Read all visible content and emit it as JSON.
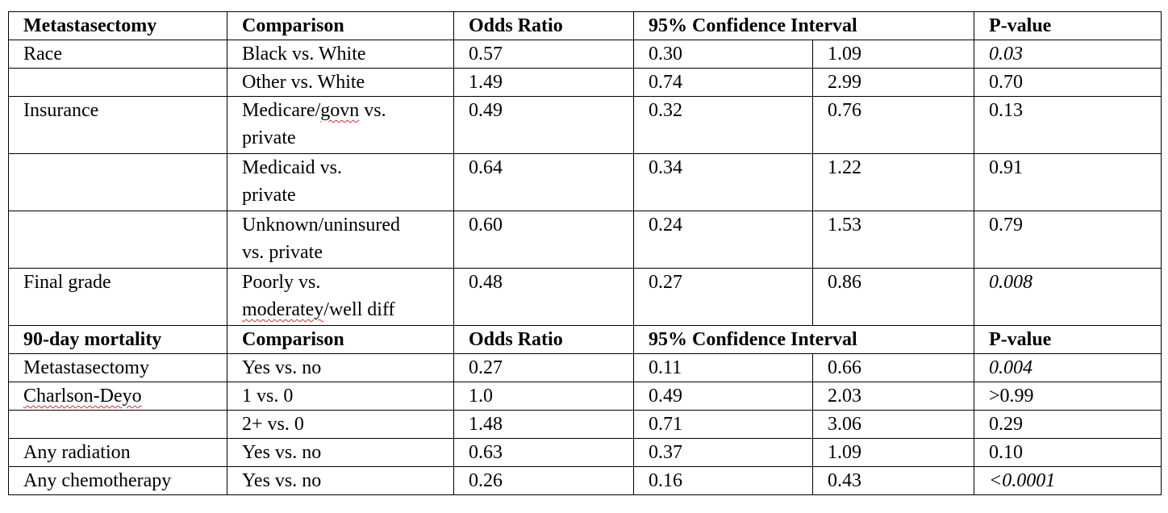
{
  "headers_1": {
    "c1": "Metastasectomy",
    "c2": "Comparison",
    "c3": "Odds Ratio",
    "c4": "95% Confidence Interval",
    "c6": "P-value"
  },
  "section1": [
    {
      "var": "Race",
      "cmp": [
        "Black vs. White"
      ],
      "or": "0.57",
      "lo": "0.30",
      "hi": "1.09",
      "p": "0.03"
    },
    {
      "var": "",
      "cmp": [
        "Other vs. White"
      ],
      "or": "1.49",
      "lo": "0.74",
      "hi": "2.99",
      "p": "0.70"
    },
    {
      "var": "Insurance",
      "cmp_pre": "Medicare/",
      "cmp_squig": "govn",
      "cmp_post": " vs.",
      "cmp2": "private",
      "or": "0.49",
      "lo": "0.32",
      "hi": "0.76",
      "p": "0.13"
    },
    {
      "var": "",
      "cmp": [
        "Medicaid vs.",
        "private"
      ],
      "or": "0.64",
      "lo": "0.34",
      "hi": "1.22",
      "p": "0.91"
    },
    {
      "var": "",
      "cmp": [
        "Unknown/uninsured",
        "vs. private"
      ],
      "or": "0.60",
      "lo": "0.24",
      "hi": "1.53",
      "p": "0.79"
    },
    {
      "var": "Final grade",
      "cmp1": "Poorly vs.",
      "cmp2_squig": "moderatey",
      "cmp2_post": "/well diff",
      "or": "0.48",
      "lo": "0.27",
      "hi": "0.86",
      "p": "0.008"
    }
  ],
  "headers_2": {
    "c1": "90-day mortality",
    "c2": "Comparison",
    "c3": "Odds Ratio",
    "c4": "95% Confidence Interval",
    "c6": "P-value"
  },
  "section2": [
    {
      "var": "Metastasectomy",
      "cmp": "Yes vs. no",
      "or": "0.27",
      "lo": "0.11",
      "hi": "0.66",
      "p": "0.004"
    },
    {
      "var": "Charlson-Deyo",
      "cmp": "1 vs. 0",
      "or": "1.0",
      "lo": "0.49",
      "hi": "2.03",
      "p": ">0.99"
    },
    {
      "var": "",
      "cmp": "2+ vs. 0",
      "or": "1.48",
      "lo": "0.71",
      "hi": "3.06",
      "p": "0.29"
    },
    {
      "var": "Any radiation",
      "cmp": "Yes vs. no",
      "or": "0.63",
      "lo": "0.37",
      "hi": "1.09",
      "p": "0.10"
    },
    {
      "var": "Any chemotherapy",
      "cmp": "Yes vs. no",
      "or": "0.26",
      "lo": "0.16",
      "hi": "0.43",
      "p": "<0.0001"
    }
  ]
}
